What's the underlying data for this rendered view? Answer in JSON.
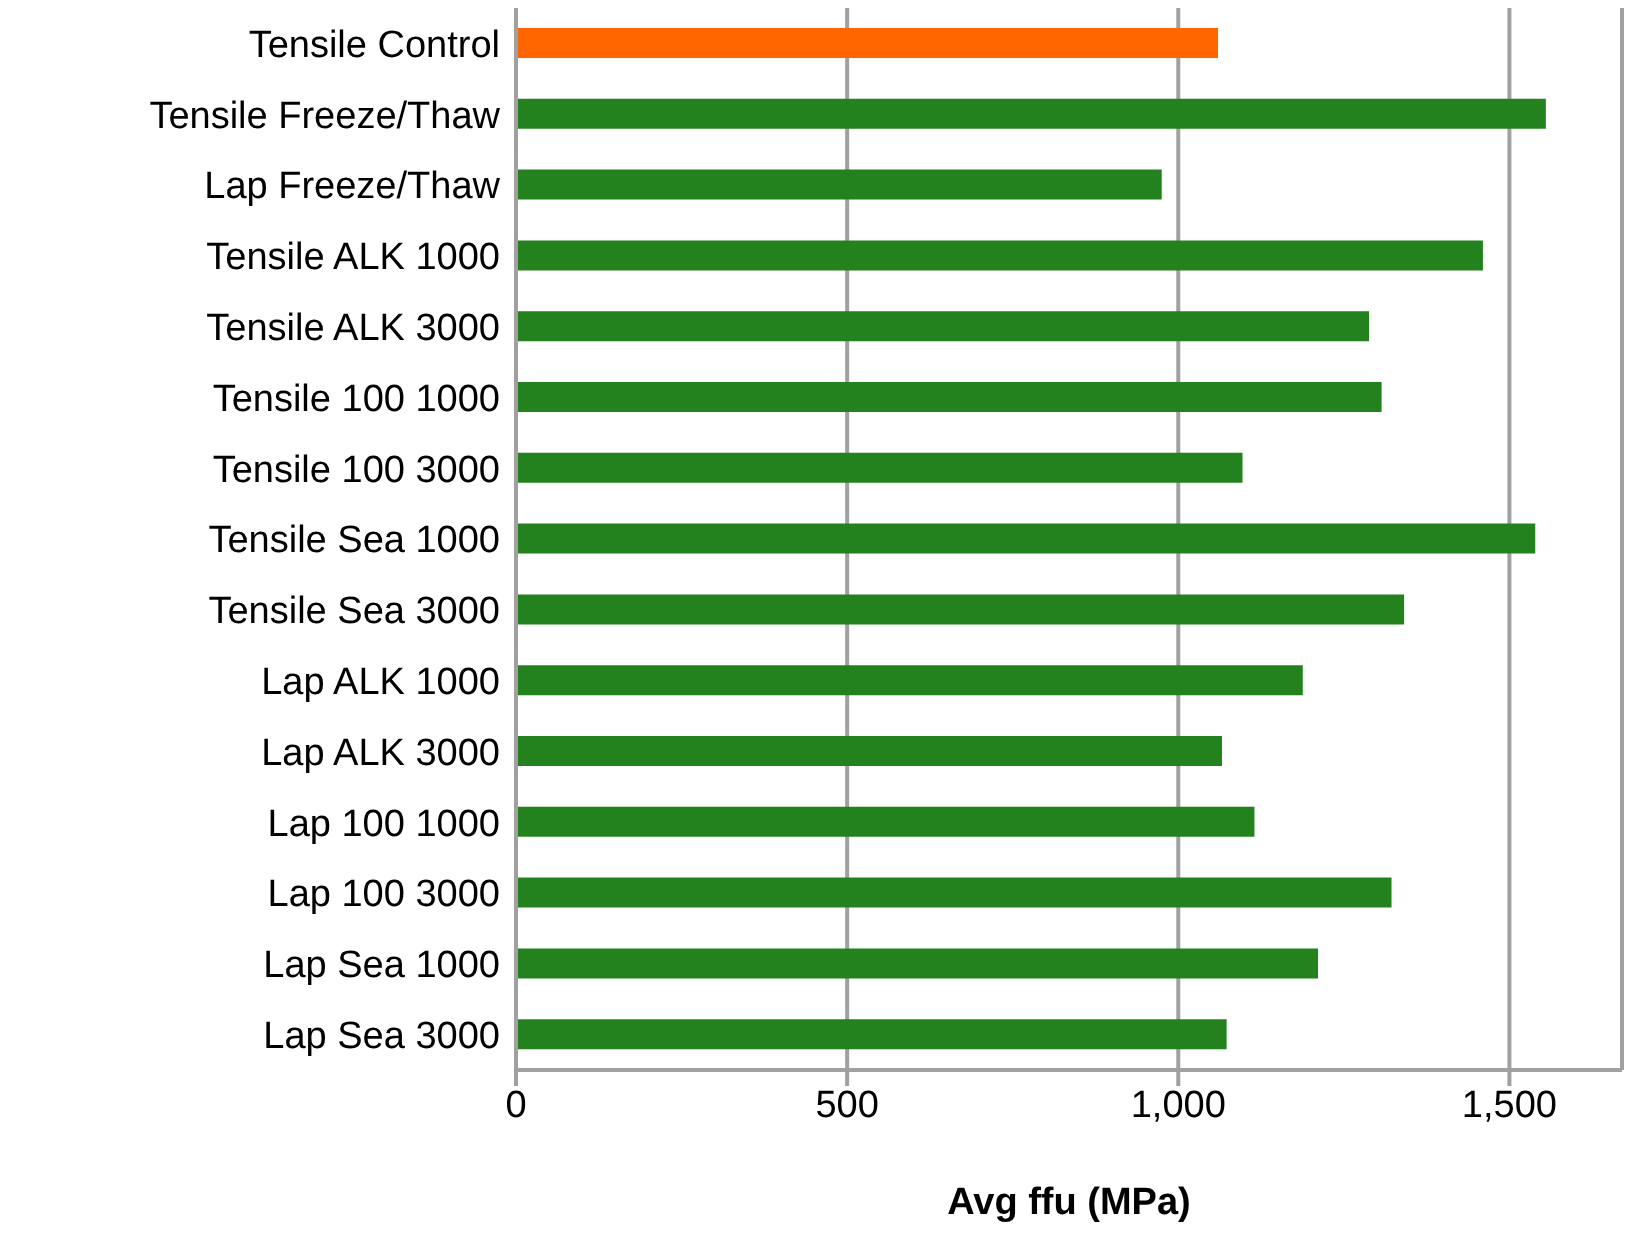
{
  "chart_data": {
    "type": "bar",
    "orientation": "horizontal",
    "xlabel": "Avg ffu (MPa)",
    "categories": [
      "Tensile Control",
      "Tensile Freeze/Thaw",
      "Lap Freeze/Thaw",
      "Tensile ALK 1000",
      "Tensile ALK 3000",
      "Tensile 100 1000",
      "Tensile 100 3000",
      "Tensile Sea 1000",
      "Tensile Sea 3000",
      "Lap ALK 1000",
      "Lap ALK 3000",
      "Lap 100 1000",
      "Lap 100 3000",
      "Lap Sea 1000",
      "Lap Sea 3000"
    ],
    "values": [
      1060,
      1555,
      975,
      1460,
      1288,
      1307,
      1097,
      1539,
      1341,
      1188,
      1066,
      1115,
      1322,
      1211,
      1073
    ],
    "colors": [
      "#ff6600",
      "#23821e",
      "#23821e",
      "#23821e",
      "#23821e",
      "#23821e",
      "#23821e",
      "#23821e",
      "#23821e",
      "#23821e",
      "#23821e",
      "#23821e",
      "#23821e",
      "#23821e",
      "#23821e"
    ],
    "xlim": [
      0,
      1670
    ],
    "xticks": [
      0,
      500,
      {
        "value": 1000,
        "label": "1,000"
      },
      {
        "value": 1500,
        "label": "1,500"
      }
    ],
    "grid": "x",
    "legend": false
  }
}
